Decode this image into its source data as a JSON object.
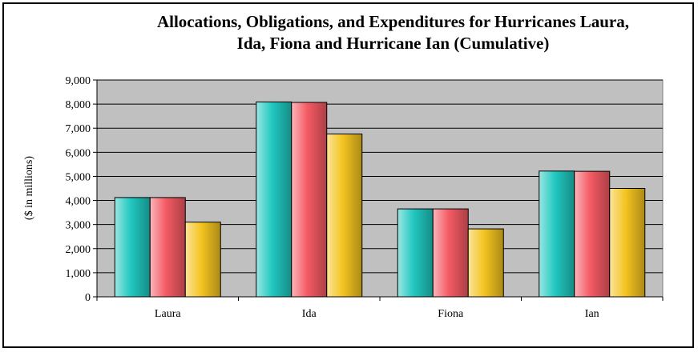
{
  "chart_data": {
    "type": "bar",
    "title_lines": [
      "Allocations, Obligations, and Expenditures for Hurricanes Laura,",
      "Ida, Fiona and Hurricane Ian (Cumulative)"
    ],
    "ylabel": "($ in millions)",
    "xlabel": "",
    "categories": [
      "Laura",
      "Ida",
      "Fiona",
      "Ian"
    ],
    "series": [
      {
        "values": [
          4120,
          8090,
          3650,
          5220
        ],
        "color": "#20c8c0"
      },
      {
        "values": [
          4120,
          8070,
          3650,
          5210
        ],
        "color": "#f45a64"
      },
      {
        "values": [
          3100,
          6760,
          2820,
          4500
        ],
        "color": "#f4c420"
      }
    ],
    "ylim": [
      0,
      9000
    ],
    "yticks": [
      0,
      1000,
      2000,
      3000,
      4000,
      5000,
      6000,
      7000,
      8000,
      9000
    ],
    "ytick_labels": [
      "0",
      "1,000",
      "2,000",
      "3,000",
      "4,000",
      "5,000",
      "6,000",
      "7,000",
      "8,000",
      "9,000"
    ],
    "grid": true,
    "plot_background": "#c0c0c0"
  }
}
